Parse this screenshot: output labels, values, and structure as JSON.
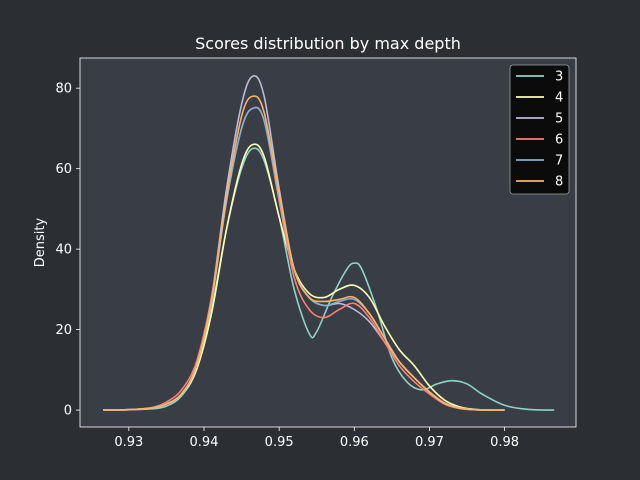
{
  "chart_data": {
    "type": "line",
    "title": "Scores distribution by max depth",
    "xlabel": "",
    "ylabel": "Density",
    "xlim": [
      0.9235,
      0.9895
    ],
    "ylim": [
      -4.2,
      87.5
    ],
    "x_ticks": [
      0.93,
      0.94,
      0.95,
      0.96,
      0.97,
      0.98
    ],
    "x_tick_labels": [
      "0.93",
      "0.94",
      "0.95",
      "0.96",
      "0.97",
      "0.98"
    ],
    "y_ticks": [
      0,
      20,
      40,
      60,
      80
    ],
    "y_tick_labels": [
      "0",
      "20",
      "40",
      "60",
      "80"
    ],
    "grid": false,
    "legend_position": "top-right",
    "background": "#393d45",
    "figure_background": "#2b2e33",
    "series": [
      {
        "name": "3",
        "color": "#8dd3c7",
        "x": [
          0.9266,
          0.93,
          0.933,
          0.935,
          0.937,
          0.939,
          0.941,
          0.943,
          0.945,
          0.9465,
          0.948,
          0.95,
          0.952,
          0.954,
          0.955,
          0.957,
          0.959,
          0.96,
          0.961,
          0.963,
          0.965,
          0.967,
          0.969,
          0.971,
          0.973,
          0.975,
          0.977,
          0.98,
          0.983,
          0.9866
        ],
        "y": [
          0,
          0.1,
          0.3,
          1,
          3.5,
          10,
          25,
          45,
          60,
          65,
          62,
          48,
          30,
          19,
          19.5,
          28,
          35,
          36.5,
          35,
          25,
          13,
          7,
          5,
          6.5,
          7.3,
          6.5,
          4,
          1.2,
          0.2,
          0
        ]
      },
      {
        "name": "4",
        "color": "#ffffb3",
        "x": [
          0.9266,
          0.93,
          0.933,
          0.935,
          0.937,
          0.939,
          0.941,
          0.943,
          0.945,
          0.9465,
          0.948,
          0.95,
          0.952,
          0.954,
          0.956,
          0.958,
          0.96,
          0.962,
          0.964,
          0.966,
          0.968,
          0.97,
          0.972,
          0.974,
          0.976,
          0.978,
          0.98
        ],
        "y": [
          0,
          0.1,
          0.5,
          1.5,
          4,
          10,
          24,
          45,
          61,
          66,
          63,
          48,
          35,
          29,
          28,
          30,
          31,
          28,
          21,
          15,
          11,
          6,
          2.5,
          0.8,
          0.2,
          0,
          0
        ]
      },
      {
        "name": "5",
        "color": "#bebada",
        "x": [
          0.9266,
          0.93,
          0.933,
          0.935,
          0.937,
          0.939,
          0.941,
          0.943,
          0.945,
          0.9465,
          0.948,
          0.95,
          0.952,
          0.954,
          0.956,
          0.958,
          0.96,
          0.962,
          0.964,
          0.966,
          0.968,
          0.97,
          0.972,
          0.974,
          0.976,
          0.978,
          0.98
        ],
        "y": [
          0,
          0.1,
          0.5,
          1.5,
          4,
          11,
          28,
          55,
          76,
          83,
          78,
          55,
          35,
          28,
          26,
          26.5,
          25,
          22,
          17,
          12,
          8,
          4.5,
          1.8,
          0.5,
          0.1,
          0,
          0
        ]
      },
      {
        "name": "6",
        "color": "#fb8072",
        "x": [
          0.9266,
          0.93,
          0.933,
          0.935,
          0.937,
          0.939,
          0.941,
          0.943,
          0.945,
          0.9465,
          0.948,
          0.95,
          0.952,
          0.954,
          0.956,
          0.958,
          0.96,
          0.962,
          0.964,
          0.966,
          0.968,
          0.97,
          0.972,
          0.974,
          0.976,
          0.978,
          0.98
        ],
        "y": [
          0,
          0.1,
          0.6,
          2,
          5,
          12,
          28,
          52,
          70,
          75,
          72,
          52,
          33,
          25,
          23,
          25,
          26.5,
          23,
          17,
          11,
          7,
          4,
          1.5,
          0.4,
          0.1,
          0,
          0
        ]
      },
      {
        "name": "7",
        "color": "#80b1d3",
        "x": [
          0.9266,
          0.93,
          0.933,
          0.935,
          0.937,
          0.939,
          0.941,
          0.943,
          0.945,
          0.9465,
          0.948,
          0.95,
          0.952,
          0.954,
          0.956,
          0.958,
          0.96,
          0.962,
          0.964,
          0.966,
          0.968,
          0.97,
          0.972,
          0.974,
          0.976,
          0.978,
          0.98
        ],
        "y": [
          0,
          0.1,
          0.5,
          1.5,
          4,
          11,
          27,
          52,
          70,
          75,
          72,
          53,
          35,
          28,
          26,
          27,
          27.5,
          24,
          18,
          12,
          8,
          4.5,
          1.7,
          0.5,
          0.1,
          0,
          0
        ]
      },
      {
        "name": "8",
        "color": "#fdb462",
        "x": [
          0.9266,
          0.93,
          0.933,
          0.935,
          0.937,
          0.939,
          0.941,
          0.943,
          0.945,
          0.9465,
          0.948,
          0.95,
          0.952,
          0.954,
          0.956,
          0.958,
          0.96,
          0.962,
          0.964,
          0.966,
          0.968,
          0.97,
          0.972,
          0.974,
          0.976,
          0.978,
          0.98
        ],
        "y": [
          0,
          0.1,
          0.5,
          1.5,
          4,
          11,
          27,
          53,
          73,
          78,
          74,
          54,
          35,
          28,
          27,
          27.5,
          28,
          24,
          18,
          12,
          8,
          4.5,
          1.7,
          0.5,
          0.1,
          0,
          0
        ]
      }
    ]
  }
}
